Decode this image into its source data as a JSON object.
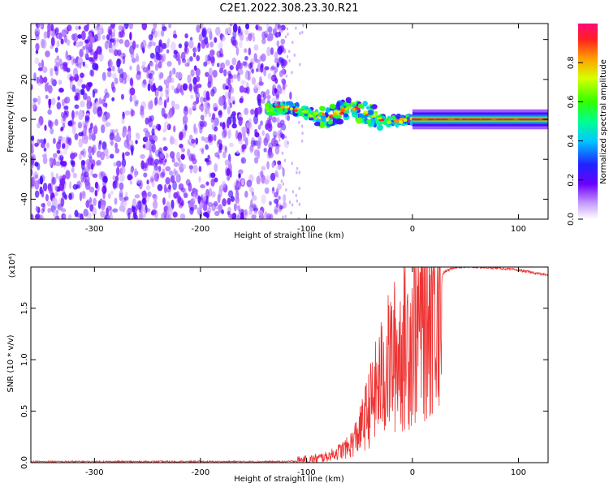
{
  "title": "C2E1.2022.308.23.30.R21",
  "colors": {
    "series": "#ee3333",
    "axis": "#000000",
    "background": "#ffffff"
  },
  "chart_data": [
    {
      "type": "heatmap",
      "xlabel": "Height of straight line (km)",
      "ylabel": "Frequency (Hz)",
      "xlim": [
        -360,
        128
      ],
      "ylim": [
        -50,
        48
      ],
      "x_ticks": [
        -300,
        -200,
        -100,
        0,
        100
      ],
      "x_tick_labels": [
        "-300",
        "-200",
        "-100",
        "0",
        "100"
      ],
      "y_ticks": [
        -40,
        -20,
        0,
        20,
        40
      ],
      "y_tick_labels": [
        "-40",
        "-20",
        "0",
        "20",
        "40"
      ],
      "grid": false,
      "colorbar": {
        "label": "Normalized spectral amplitude",
        "range": [
          0,
          1
        ],
        "ticks": [
          0.0,
          0.2,
          0.4,
          0.6,
          0.8
        ],
        "tick_labels": [
          "0.0",
          "0.2",
          "0.4",
          "0.6",
          "0.8"
        ]
      },
      "regions": [
        {
          "name": "noise",
          "x": [
            -360,
            -120
          ],
          "y": [
            -50,
            48
          ],
          "amplitude": 0.2
        },
        {
          "name": "signal_onset",
          "x": [
            -138,
            0
          ],
          "center_y": [
            5,
            6,
            3,
            1,
            6,
            2,
            -1,
            0
          ],
          "amplitude": 0.45
        },
        {
          "name": "signal_line",
          "x": [
            0,
            128
          ],
          "center_y": 0,
          "amplitude": 0.95
        }
      ]
    },
    {
      "type": "line",
      "xlabel": "Height of straight line (km)",
      "ylabel": "SNR (10 * v/v)",
      "multiplier": "(x10⁴)",
      "xlim": [
        -360,
        128
      ],
      "ylim": [
        0,
        1.9
      ],
      "x_ticks": [
        -300,
        -200,
        -100,
        0,
        100
      ],
      "x_tick_labels": [
        "-300",
        "-200",
        "-100",
        "0",
        "100"
      ],
      "y_ticks": [
        0.0,
        0.5,
        1.0,
        1.5
      ],
      "y_tick_labels": [
        "0.0",
        "0.5",
        "1.0",
        "1.5"
      ],
      "grid": false,
      "x": [
        -360,
        -300,
        -200,
        -120,
        -100,
        -80,
        -60,
        -50,
        -40,
        -30,
        -20,
        -10,
        0,
        10,
        20,
        30,
        40,
        60,
        80,
        100,
        128
      ],
      "y": [
        0.01,
        0.01,
        0.01,
        0.01,
        0.02,
        0.06,
        0.15,
        0.3,
        0.55,
        0.8,
        1.0,
        1.1,
        1.25,
        1.45,
        1.7,
        1.85,
        1.9,
        1.9,
        1.89,
        1.87,
        1.82
      ]
    }
  ]
}
